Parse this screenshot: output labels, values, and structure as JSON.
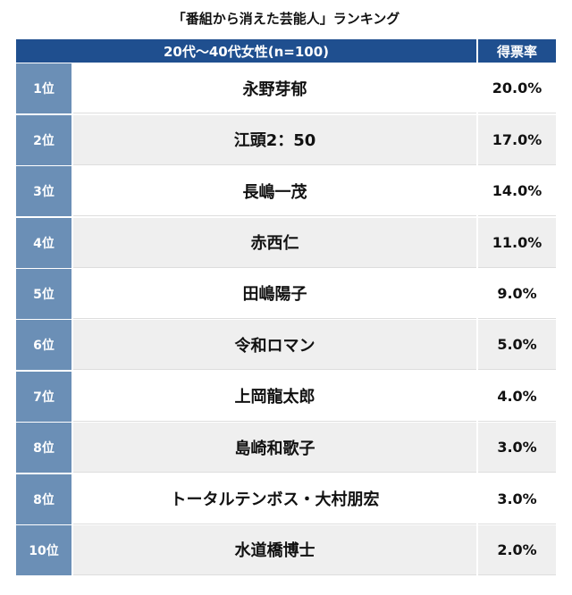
{
  "header": {
    "title": "「番組から消えた芸能人」ランキング"
  },
  "table": {
    "columns": [
      "20代〜40代女性(n=100)",
      "得票率"
    ],
    "rows": [
      [
        "1位",
        "永野芽郁",
        "20.0%"
      ],
      [
        "2位",
        "江頭2：50",
        "17.0%"
      ],
      [
        "3位",
        "長嶋一茂",
        "14.0%"
      ],
      [
        "4位",
        "赤西仁",
        "11.0%"
      ],
      [
        "5位",
        "田嶋陽子",
        "9.0%"
      ],
      [
        "6位",
        "令和ロマン",
        "5.0%"
      ],
      [
        "7位",
        "上岡龍太郎",
        "4.0%"
      ],
      [
        "8位",
        "島崎和歌子",
        "3.0%"
      ],
      [
        "8位",
        "トータルテンボス・大村朋宏",
        "3.0%"
      ],
      [
        "10位",
        "水道橋博士",
        "2.0%"
      ]
    ]
  }
}
